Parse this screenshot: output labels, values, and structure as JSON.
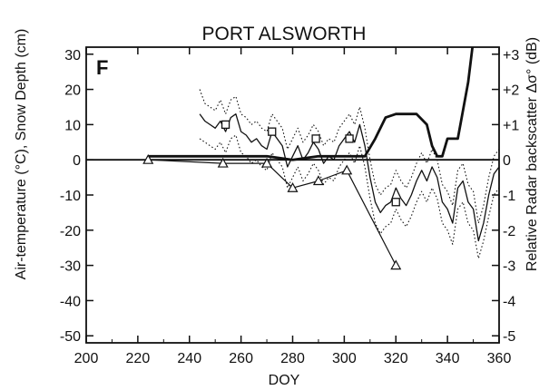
{
  "chart_data": {
    "type": "line",
    "title": "PORT ALSWORTH",
    "panel_letter": "F",
    "xlabel": "DOY",
    "ylabel": "Air-temperature (°C), Snow Depth (cm)",
    "y2label": "Relative Radar backscatter Δσ° (dB)",
    "xlim": [
      200,
      360
    ],
    "ylim": [
      -52,
      32
    ],
    "y2lim": [
      -5.2,
      3.2
    ],
    "xticks": [
      "200",
      "220",
      "240",
      "260",
      "280",
      "300",
      "320",
      "340",
      "360"
    ],
    "yticks": [
      "30",
      "20",
      "10",
      "0",
      "-10",
      "-20",
      "-30",
      "-40",
      "-50"
    ],
    "y2ticks": [
      "+3",
      "+2",
      "+1",
      "0",
      "-1",
      "-2",
      "-3",
      "-4",
      "-5"
    ],
    "series": [
      {
        "style": "thin-solid",
        "axis": "left",
        "x": [
          244,
          246,
          248,
          250,
          252,
          254,
          256,
          258,
          260,
          262,
          264,
          266,
          268,
          270,
          272,
          274,
          276,
          278,
          280,
          282,
          284,
          286,
          288,
          290,
          292,
          294,
          296,
          298,
          300,
          302,
          304,
          306,
          308,
          310,
          312,
          314,
          316,
          318,
          320,
          322,
          324,
          326,
          328,
          330,
          332,
          334,
          336,
          338,
          340,
          342,
          344,
          346,
          348,
          350,
          352,
          354,
          356,
          358,
          360
        ],
        "y": [
          13,
          11,
          10,
          9,
          11,
          8,
          12,
          13,
          8,
          7,
          5,
          6,
          4,
          3,
          8,
          6,
          4,
          -2,
          1,
          4,
          0,
          2,
          5,
          3,
          -1,
          1,
          0,
          4,
          6,
          8,
          5,
          10,
          4,
          -5,
          -12,
          -15,
          -13,
          -12,
          -8,
          -11,
          -13,
          -10,
          -6,
          -3,
          -6,
          -2,
          -5,
          -12,
          -14,
          -18,
          -8,
          -6,
          -12,
          -14,
          -23,
          -18,
          -10,
          -4,
          -2
        ]
      },
      {
        "style": "dotted",
        "axis": "left",
        "x": [
          244,
          246,
          248,
          250,
          252,
          254,
          256,
          258,
          260,
          262,
          264,
          266,
          268,
          270,
          272,
          274,
          276,
          278,
          280,
          282,
          284,
          286,
          288,
          290,
          292,
          294,
          296,
          298,
          300,
          302,
          304,
          306,
          308,
          310,
          312,
          314,
          316,
          318,
          320,
          322,
          324,
          326,
          328,
          330,
          332,
          334,
          336,
          338,
          340,
          342,
          344,
          346,
          348,
          350,
          352,
          354,
          356,
          358,
          360
        ],
        "y": [
          20,
          16,
          15,
          14,
          17,
          13,
          17,
          18,
          13,
          12,
          10,
          11,
          9,
          8,
          13,
          11,
          9,
          3,
          6,
          9,
          5,
          7,
          10,
          8,
          4,
          6,
          5,
          9,
          11,
          13,
          10,
          15,
          9,
          0,
          -7,
          -10,
          -8,
          -7,
          -3,
          -6,
          -8,
          -5,
          -1,
          2,
          -1,
          3,
          0,
          -7,
          -9,
          -13,
          -3,
          -1,
          -7,
          -9,
          -18,
          -13,
          -5,
          1,
          3
        ]
      },
      {
        "style": "dotted",
        "axis": "left",
        "x": [
          244,
          246,
          248,
          250,
          252,
          254,
          256,
          258,
          260,
          262,
          264,
          266,
          268,
          270,
          272,
          274,
          276,
          278,
          280,
          282,
          284,
          286,
          288,
          290,
          292,
          294,
          296,
          298,
          300,
          302,
          304,
          306,
          308,
          310,
          312,
          314,
          316,
          318,
          320,
          322,
          324,
          326,
          328,
          330,
          332,
          334,
          336,
          338,
          340,
          342,
          344,
          346,
          348,
          350,
          352,
          354,
          356,
          358,
          360
        ],
        "y": [
          6,
          5,
          4,
          3,
          5,
          2,
          6,
          7,
          2,
          1,
          -1,
          0,
          -2,
          -3,
          2,
          0,
          -2,
          -8,
          -5,
          -2,
          -6,
          -4,
          -1,
          -3,
          -7,
          -5,
          -6,
          -2,
          0,
          2,
          -1,
          4,
          -2,
          -11,
          -18,
          -21,
          -19,
          -18,
          -14,
          -17,
          -19,
          -16,
          -12,
          -9,
          -12,
          -8,
          -11,
          -18,
          -20,
          -24,
          -14,
          -12,
          -18,
          -20,
          -28,
          -23,
          -16,
          -10,
          -8
        ]
      },
      {
        "style": "thick",
        "axis": "left",
        "x": [
          224,
          270,
          280,
          290,
          300,
          304,
          308,
          312,
          316,
          320,
          324,
          328,
          332,
          334,
          336,
          338,
          340,
          344,
          346,
          348,
          350,
          352,
          354,
          356,
          358,
          360
        ],
        "y": [
          1,
          1,
          0,
          1,
          1,
          1,
          1,
          6,
          12,
          13,
          13,
          13,
          10,
          4,
          1,
          1,
          6,
          6,
          14,
          22,
          34,
          35,
          35,
          35,
          35,
          35
        ]
      },
      {
        "style": "line-triangle",
        "axis": "left",
        "x": [
          224,
          253,
          270,
          280,
          290,
          301,
          320
        ],
        "y": [
          0,
          -1,
          -1,
          -8,
          -6,
          -3,
          -30
        ]
      },
      {
        "style": "square-marker",
        "axis": "left",
        "x": [
          254,
          272,
          289,
          302,
          320
        ],
        "y": [
          10,
          8,
          6,
          6,
          -12
        ]
      }
    ],
    "baseline": 0
  }
}
